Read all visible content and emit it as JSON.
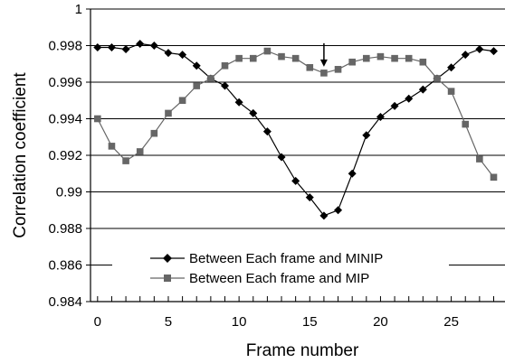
{
  "chart_data": {
    "type": "line",
    "xlabel": "Frame number",
    "ylabel": "Correlation coefficient",
    "xlim": [
      -0.5,
      28.8
    ],
    "ylim": [
      0.984,
      1
    ],
    "xticks": [
      0,
      5,
      10,
      15,
      20,
      25
    ],
    "xtick_labels": [
      "0",
      "5",
      "10",
      "15",
      "20",
      "25"
    ],
    "yticks": [
      0.984,
      0.986,
      0.988,
      0.99,
      0.992,
      0.994,
      0.996,
      0.998,
      1
    ],
    "ytick_labels": [
      "0.984",
      "0.986",
      "0.988",
      "0.99",
      "0.992",
      "0.994",
      "0.996",
      "0.998",
      "1"
    ],
    "grid": "horizontal",
    "legend_position": "lower-center",
    "annotations": [
      {
        "type": "arrow",
        "x": 16,
        "y": 0.9965,
        "direction": "down"
      }
    ],
    "series": [
      {
        "name": "Between Each frame and MINIP",
        "color": "#000000",
        "marker": "diamond",
        "x": [
          0,
          1,
          2,
          3,
          4,
          5,
          6,
          7,
          8,
          9,
          10,
          11,
          12,
          13,
          14,
          15,
          16,
          17,
          18,
          19,
          20,
          21,
          22,
          23,
          24,
          25,
          26,
          27,
          28
        ],
        "values": [
          0.9979,
          0.9979,
          0.9978,
          0.9981,
          0.998,
          0.9976,
          0.9975,
          0.9969,
          0.9962,
          0.9958,
          0.9949,
          0.9943,
          0.9933,
          0.9919,
          0.9906,
          0.9897,
          0.9887,
          0.989,
          0.991,
          0.9931,
          0.9941,
          0.9947,
          0.9951,
          0.9956,
          0.9962,
          0.9968,
          0.9975,
          0.9978,
          0.9977
        ]
      },
      {
        "name": "Between Each frame and MIP",
        "color": "#666666",
        "marker": "square",
        "x": [
          0,
          1,
          2,
          3,
          4,
          5,
          6,
          7,
          8,
          9,
          10,
          11,
          12,
          13,
          14,
          15,
          16,
          17,
          18,
          19,
          20,
          21,
          22,
          23,
          24,
          25,
          26,
          27,
          28
        ],
        "values": [
          0.994,
          0.9925,
          0.9917,
          0.9922,
          0.9932,
          0.9943,
          0.995,
          0.9958,
          0.9962,
          0.9969,
          0.9973,
          0.9973,
          0.9977,
          0.9974,
          0.9973,
          0.9968,
          0.9965,
          0.9967,
          0.9971,
          0.9973,
          0.9974,
          0.9973,
          0.9973,
          0.9971,
          0.9962,
          0.9955,
          0.9937,
          0.9918,
          0.9908
        ]
      }
    ]
  }
}
